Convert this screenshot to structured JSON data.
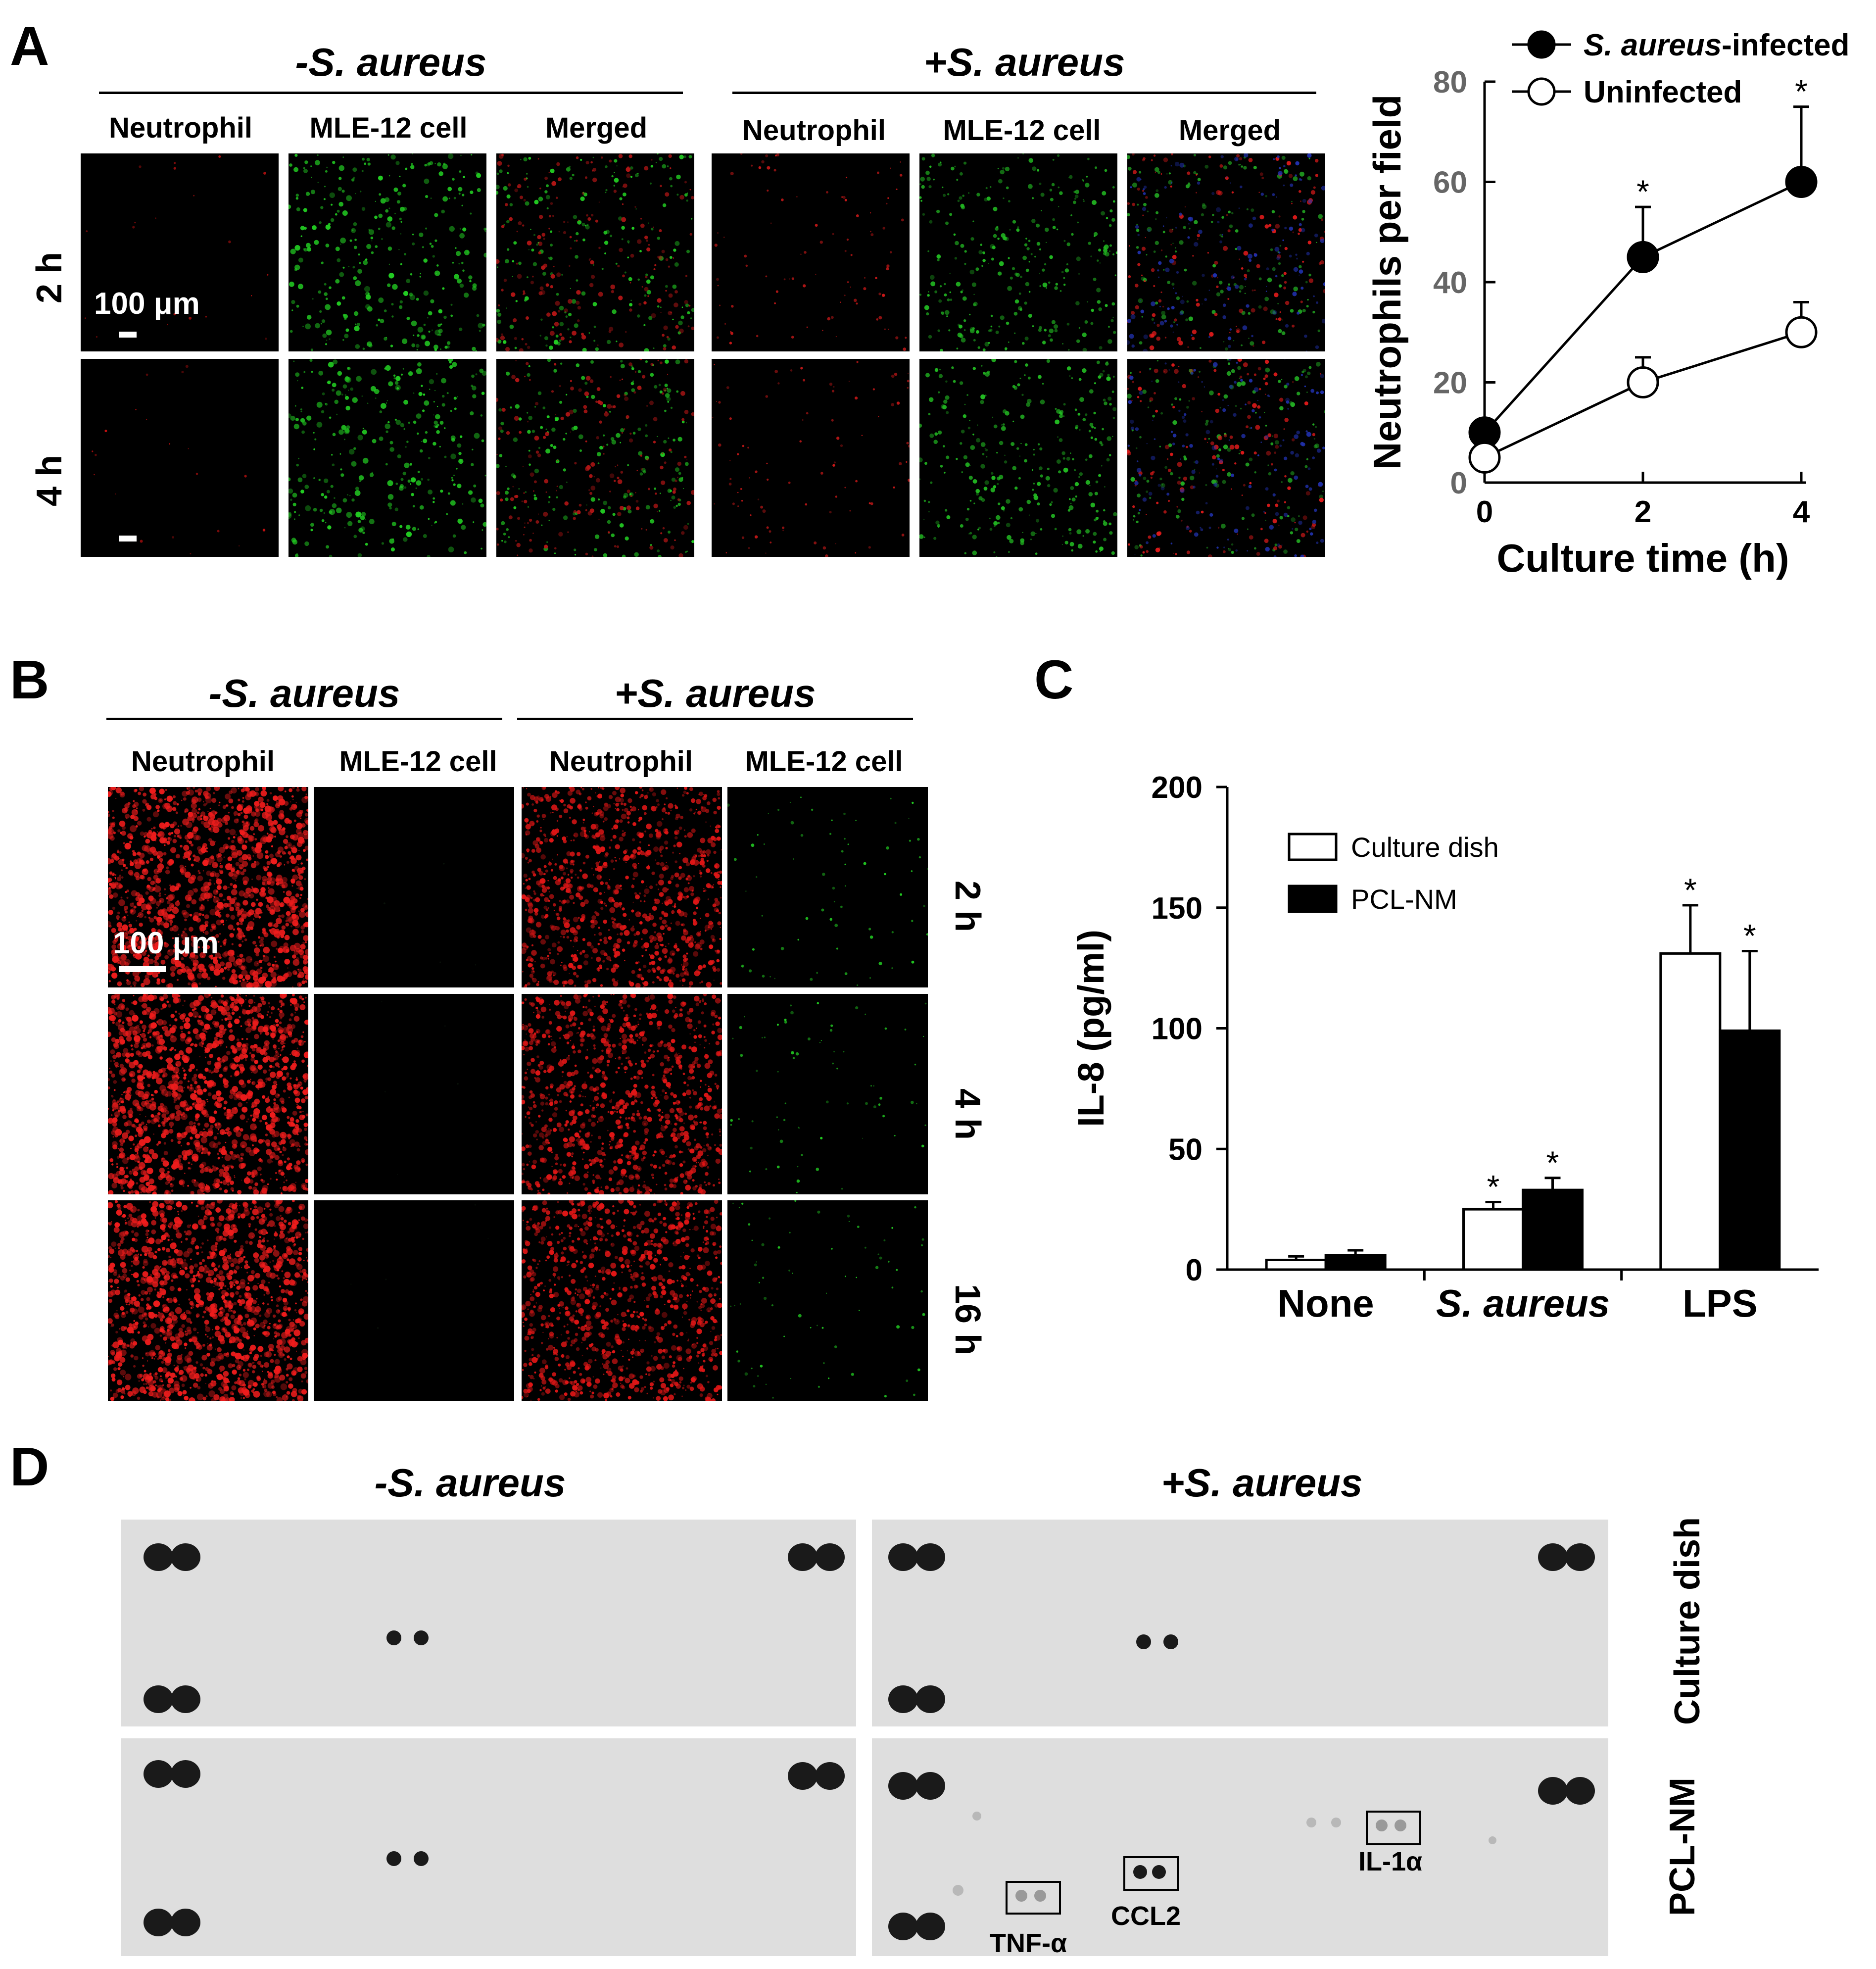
{
  "panel_letters": {
    "a": "A",
    "b": "B",
    "c": "C",
    "d": "D"
  },
  "panel_a": {
    "group_left": "-S. aureus",
    "group_right": "+S. aureus",
    "columns": [
      "Neutrophil",
      "MLE-12 cell",
      "Merged",
      "Neutrophil",
      "MLE-12 cell",
      "Merged"
    ],
    "rows": [
      "2 h",
      "4 h"
    ],
    "scale_bar": "100 μm"
  },
  "panel_b": {
    "group_left": "-S. aureus",
    "group_right": "+S. aureus",
    "columns": [
      "Neutrophil",
      "MLE-12 cell",
      "Neutrophil",
      "MLE-12 cell"
    ],
    "rows": [
      "2 h",
      "4 h",
      "16 h"
    ],
    "scale_bar": "100 μm"
  },
  "panel_d": {
    "group_left": "-S. aureus",
    "group_right": "+S. aureus",
    "rows": [
      "Culture dish",
      "PCL-NM"
    ],
    "spot_labels": [
      "TNF-α",
      "CCL2",
      "IL-1α"
    ]
  },
  "chart_data": [
    {
      "type": "line",
      "panel": "A",
      "xlabel": "Culture time (h)",
      "ylabel": "Neutrophils per field",
      "x": [
        0,
        2,
        4
      ],
      "xticks": [
        "0",
        "2",
        "4"
      ],
      "yticks": [
        "0",
        "20",
        "40",
        "60",
        "80"
      ],
      "ylim": [
        0,
        80
      ],
      "series": [
        {
          "name": "S. aureus-infected",
          "values": [
            10,
            45,
            60
          ],
          "errors": [
            0,
            10,
            15
          ],
          "marker": "filled-circle",
          "significance": [
            "",
            "*",
            "*"
          ]
        },
        {
          "name": "Uninfected",
          "values": [
            5,
            20,
            30
          ],
          "errors": [
            0,
            5,
            6
          ],
          "marker": "open-circle",
          "significance": [
            "",
            "",
            ""
          ]
        }
      ],
      "legend_position": "top-right"
    },
    {
      "type": "bar",
      "panel": "C",
      "ylabel": "IL-8 (pg/ml)",
      "categories": [
        "None",
        "S. aureus",
        "LPS"
      ],
      "yticks": [
        "0",
        "50",
        "100",
        "150",
        "200"
      ],
      "ylim": [
        0,
        200
      ],
      "series": [
        {
          "name": "Culture dish",
          "values": [
            4,
            25,
            131
          ],
          "errors": [
            1.5,
            3,
            20
          ],
          "fill": "#ffffff",
          "significance": [
            "",
            "*",
            "*"
          ]
        },
        {
          "name": "PCL-NM",
          "values": [
            6,
            33,
            99
          ],
          "errors": [
            2,
            5,
            33
          ],
          "fill": "#000000",
          "significance": [
            "",
            "*",
            "*"
          ]
        }
      ],
      "legend_position": "top-left"
    }
  ]
}
